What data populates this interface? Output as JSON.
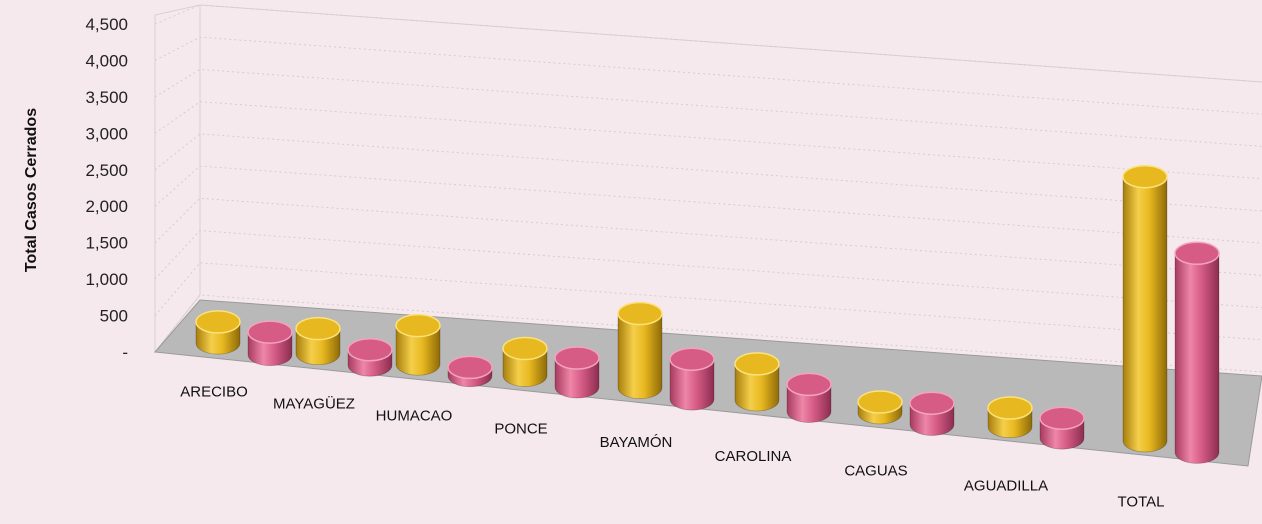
{
  "chart_data": {
    "type": "bar",
    "title": "",
    "xlabel": "",
    "ylabel": "Total Casos Cerrados",
    "ylim": [
      0,
      4500
    ],
    "yticks": [
      {
        "value": 0,
        "label": "-"
      },
      {
        "value": 500,
        "label": "500"
      },
      {
        "value": 1000,
        "label": "1,000"
      },
      {
        "value": 1500,
        "label": "1,500"
      },
      {
        "value": 2000,
        "label": "2,000"
      },
      {
        "value": 2500,
        "label": "2,500"
      },
      {
        "value": 3000,
        "label": "3,000"
      },
      {
        "value": 3500,
        "label": "3,500"
      },
      {
        "value": 4000,
        "label": "4,000"
      },
      {
        "value": 4500,
        "label": "4,500"
      }
    ],
    "grid": true,
    "style": "3d-cylinder",
    "categories": [
      "ARECIBO",
      "MAYAGÜEZ",
      "HUMACAO",
      "PONCE",
      "BAYAMÓN",
      "CAROLINA",
      "CAGUAS",
      "AGUADILLA",
      "TOTAL"
    ],
    "series": [
      {
        "color": "#e8b820",
        "values": [
          330,
          390,
          600,
          420,
          1150,
          560,
          170,
          290,
          4100
        ]
      },
      {
        "color": "#d65c86",
        "values": [
          350,
          240,
          130,
          450,
          620,
          420,
          330,
          310,
          3090
        ]
      }
    ]
  }
}
